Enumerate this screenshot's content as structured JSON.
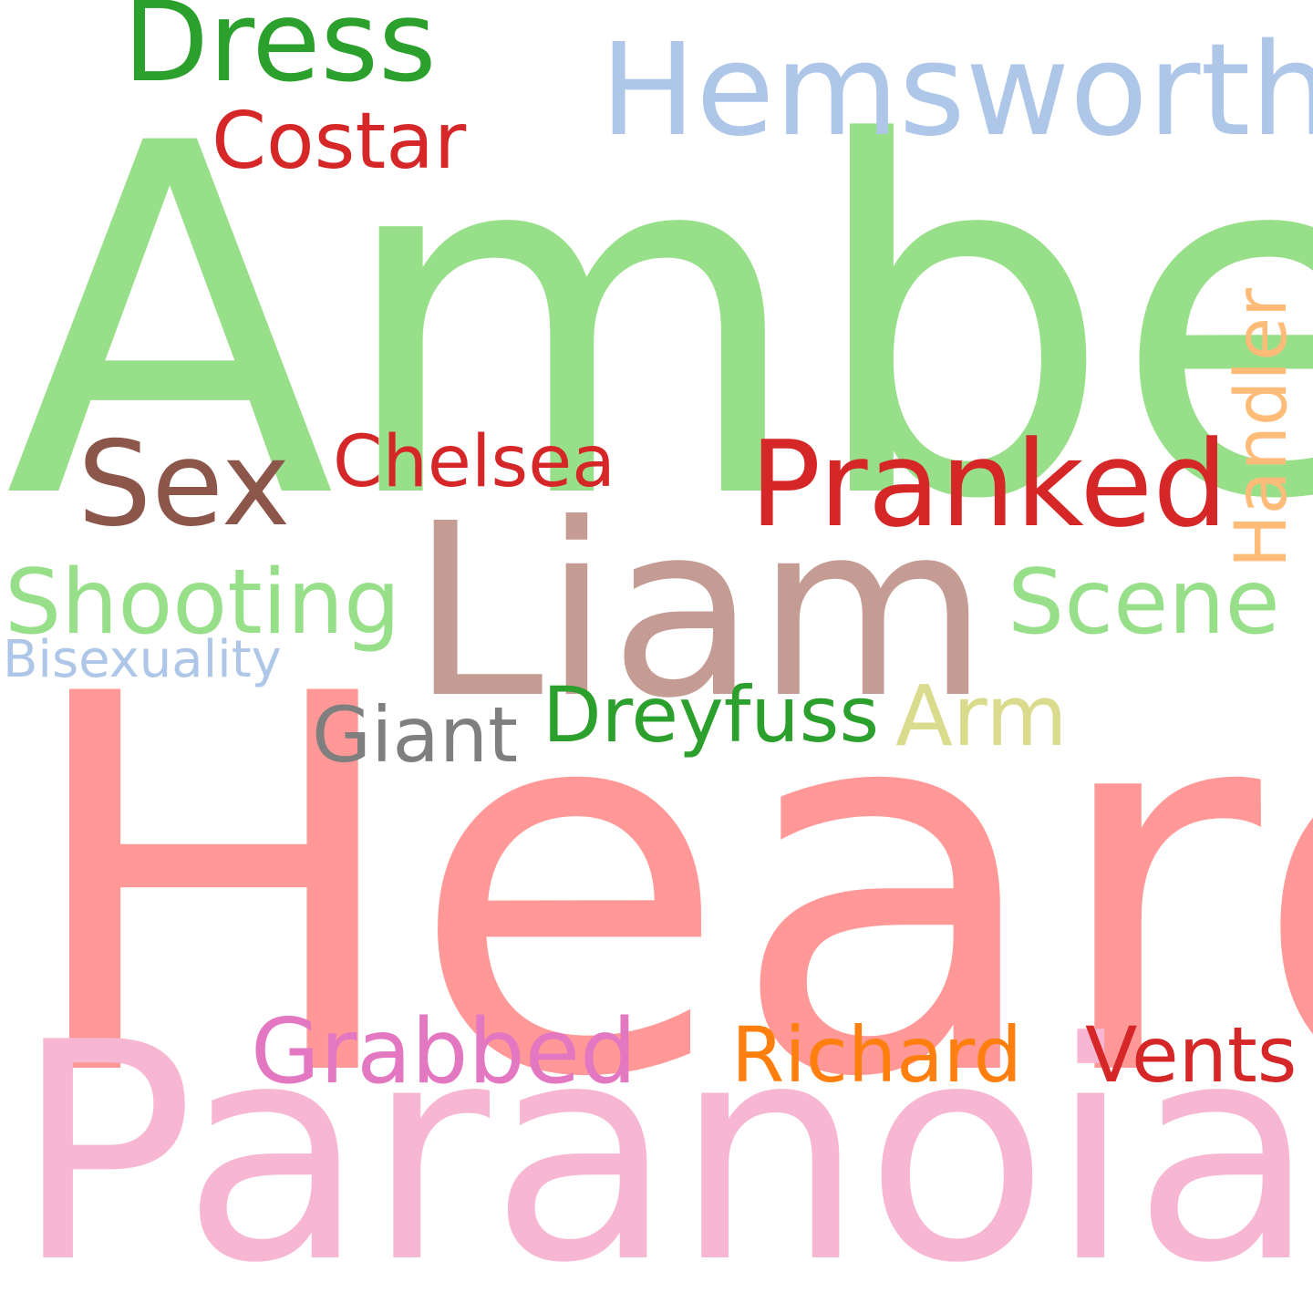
{
  "words": [
    {
      "text": "Amber",
      "color": "#98df8a"
    },
    {
      "text": "Heard",
      "color": "#ff9896"
    },
    {
      "text": "Paranoia",
      "color": "#f7b6d2"
    },
    {
      "text": "Liam",
      "color": "#c49c94"
    },
    {
      "text": "Hemsworth",
      "color": "#aec7e8"
    },
    {
      "text": "Dress",
      "color": "#2ca02c"
    },
    {
      "text": "Pranked",
      "color": "#d62728"
    },
    {
      "text": "Sex",
      "color": "#8c564b"
    },
    {
      "text": "Costar",
      "color": "#d62728"
    },
    {
      "text": "Chelsea",
      "color": "#d62728"
    },
    {
      "text": "Handler",
      "color": "#ffbb78"
    },
    {
      "text": "Shooting",
      "color": "#98df8a"
    },
    {
      "text": "Scene",
      "color": "#98df8a"
    },
    {
      "text": "Bisexuality",
      "color": "#aec7e8"
    },
    {
      "text": "Giant",
      "color": "#7f7f7f"
    },
    {
      "text": "Dreyfuss",
      "color": "#2ca02c"
    },
    {
      "text": "Arm",
      "color": "#dbdb8d"
    },
    {
      "text": "Grabbed",
      "color": "#e377c2"
    },
    {
      "text": "Richard",
      "color": "#ff7f0e"
    },
    {
      "text": "Vents",
      "color": "#d62728"
    }
  ]
}
